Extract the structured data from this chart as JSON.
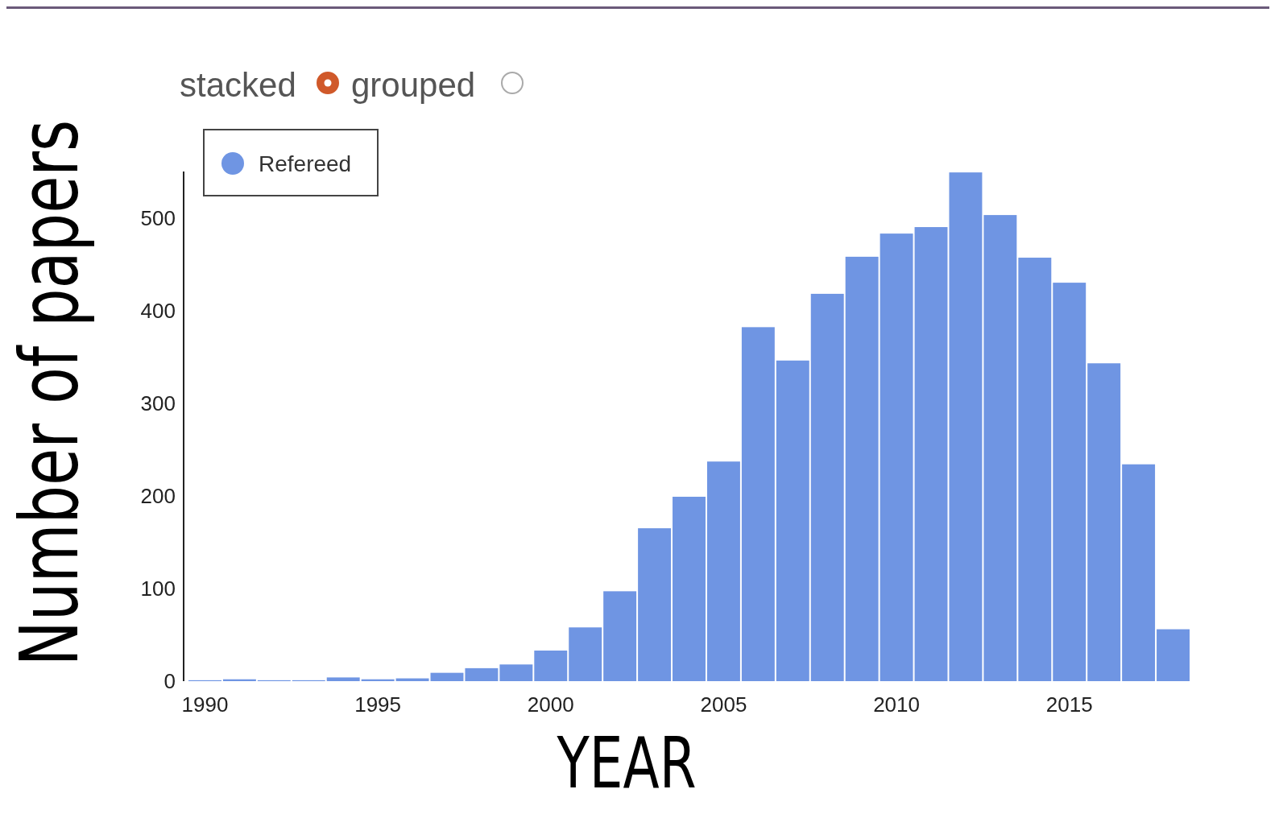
{
  "chart_data": {
    "type": "bar",
    "xlabel": "YEAR",
    "ylabel": "Number of papers",
    "x": [
      1990,
      1991,
      1992,
      1993,
      1994,
      1995,
      1996,
      1997,
      1998,
      1999,
      2000,
      2001,
      2002,
      2003,
      2004,
      2005,
      2006,
      2007,
      2008,
      2009,
      2010,
      2011,
      2012,
      2013,
      2014,
      2015,
      2016,
      2017,
      2018
    ],
    "series": [
      {
        "name": "Refereed",
        "color": "#6f95e3",
        "values": [
          1,
          2,
          1,
          1,
          4,
          2,
          3,
          9,
          14,
          18,
          33,
          58,
          97,
          165,
          199,
          237,
          382,
          346,
          418,
          458,
          483,
          490,
          549,
          503,
          457,
          430,
          343,
          234,
          56
        ]
      }
    ],
    "xlim": [
      1989.5,
      2018.5
    ],
    "xticks": [
      1990,
      1995,
      2000,
      2005,
      2010,
      2015
    ],
    "ylim": [
      0,
      550
    ],
    "yticks": [
      0,
      100,
      200,
      300,
      400,
      500
    ],
    "grid": false,
    "legend": "top left",
    "marker": "circle",
    "annotations": [
      "stacked",
      "grouped"
    ]
  }
}
